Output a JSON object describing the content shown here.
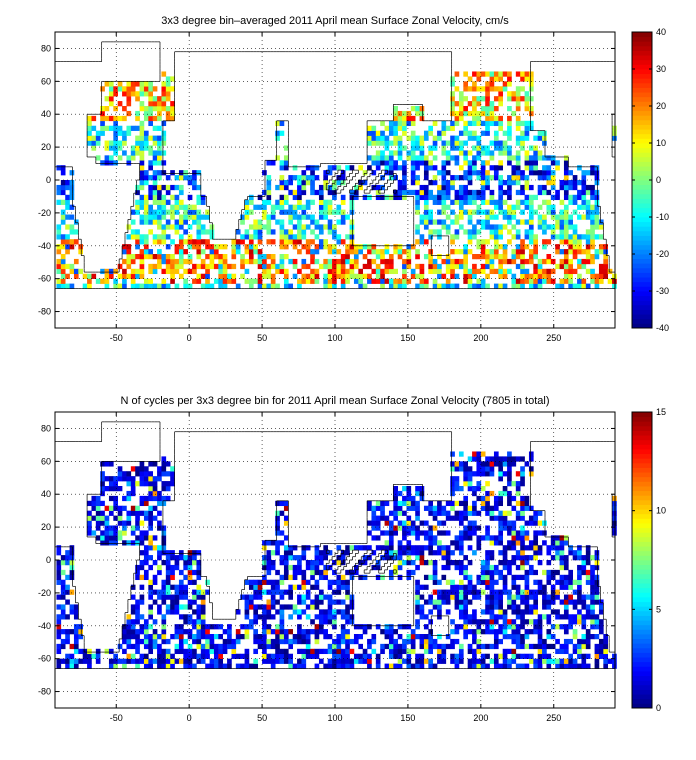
{
  "chart_data": [
    {
      "type": "heatmap",
      "title": "3x3 degree bin–averaged 2011 April mean Surface Zonal Velocity, cm/s",
      "xlim": [
        -92,
        292
      ],
      "ylim": [
        -90,
        90
      ],
      "x_ticks": [
        -50,
        0,
        50,
        100,
        150,
        200,
        250
      ],
      "y_ticks": [
        -80,
        -60,
        -40,
        -20,
        0,
        20,
        40,
        60,
        80
      ],
      "bin_size_deg": 3,
      "grid": true,
      "colorbar": {
        "position": "right",
        "min": -40,
        "max": 40,
        "ticks": [
          -40,
          -30,
          -20,
          -10,
          0,
          10,
          20,
          30,
          40
        ],
        "colormap": "jet"
      }
    },
    {
      "type": "heatmap",
      "title": "N of cycles per 3x3 degree bin for 2011 April mean Surface Zonal Velocity (7805 in total)",
      "xlim": [
        -92,
        292
      ],
      "ylim": [
        -90,
        90
      ],
      "x_ticks": [
        -50,
        0,
        50,
        100,
        150,
        200,
        250
      ],
      "y_ticks": [
        -80,
        -60,
        -40,
        -20,
        0,
        20,
        40,
        60,
        80
      ],
      "bin_size_deg": 3,
      "grid": true,
      "colorbar": {
        "position": "right",
        "min": 0,
        "max": 15,
        "ticks": [
          0,
          5,
          10,
          15
        ],
        "colormap": "jet"
      }
    }
  ]
}
